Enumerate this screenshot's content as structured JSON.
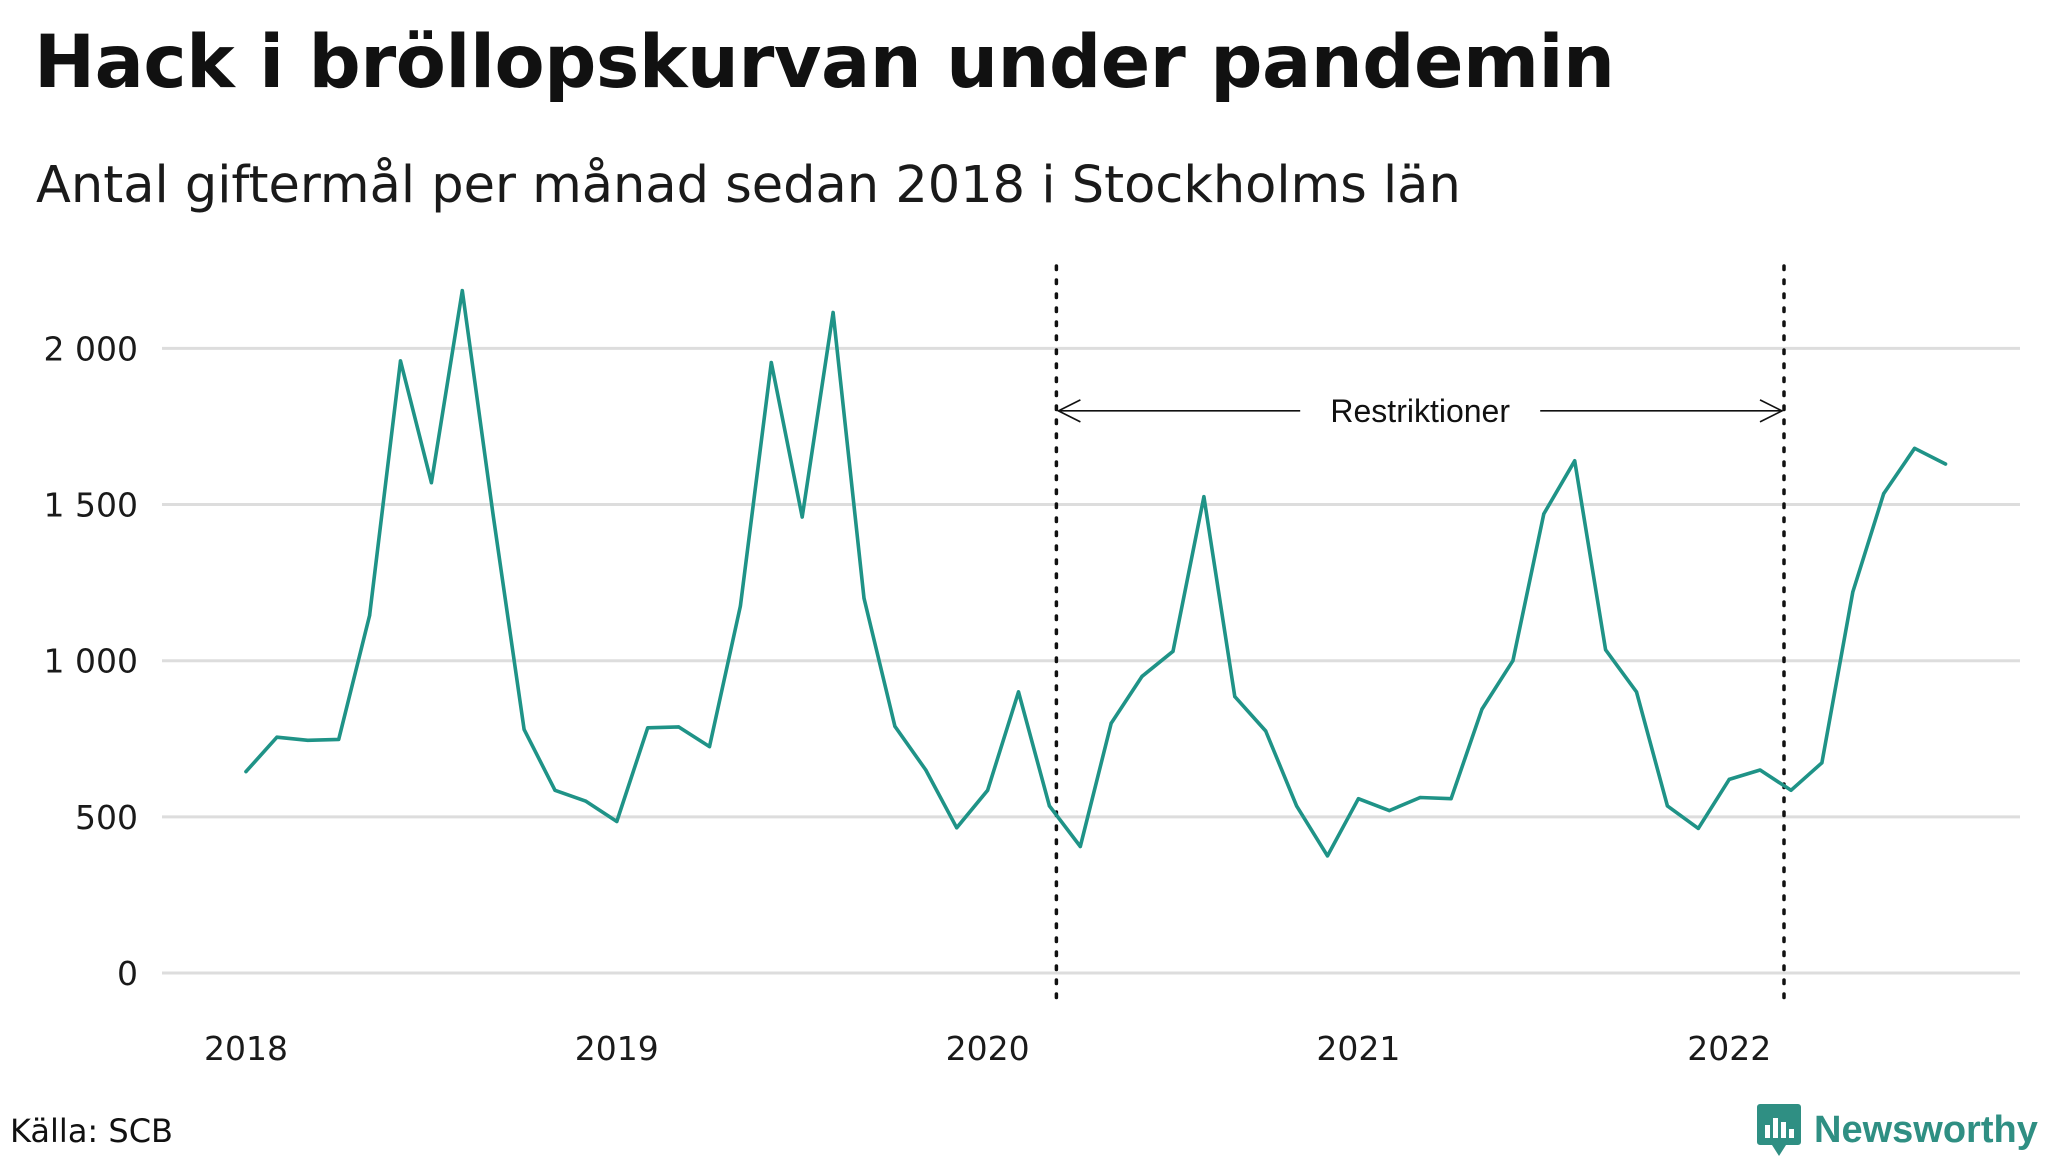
{
  "title": "Hack i bröllopskurvan under pandemin",
  "subtitle": "Antal giftermål per månad sedan 2018 i Stockholms län",
  "source": "Källa: SCB",
  "brand": "Newsworthy",
  "colors": {
    "line": "#1f9387",
    "grid": "#dddddd",
    "brand": "#2f8f83",
    "text": "#111111"
  },
  "chart_data": {
    "type": "line",
    "title": "Hack i bröllopskurvan under pandemin",
    "subtitle": "Antal giftermål per månad sedan 2018 i Stockholms län",
    "xlabel": "",
    "ylabel": "",
    "ylim": [
      0,
      2250
    ],
    "yticks": [
      {
        "value": 0,
        "label": "0"
      },
      {
        "value": 500,
        "label": "500"
      },
      {
        "value": 1000,
        "label": "1 000"
      },
      {
        "value": 1500,
        "label": "1 500"
      },
      {
        "value": 2000,
        "label": "2 000"
      }
    ],
    "xticks": [
      {
        "index": 0,
        "label": "2018"
      },
      {
        "index": 12,
        "label": "2019"
      },
      {
        "index": 24,
        "label": "2020"
      },
      {
        "index": 36,
        "label": "2021"
      },
      {
        "index": 48,
        "label": "2022"
      }
    ],
    "grid": true,
    "series": [
      {
        "name": "Antal giftermål",
        "start": "2018-01",
        "values": [
          645,
          755,
          745,
          748,
          1145,
          1960,
          1570,
          2185,
          1465,
          780,
          585,
          550,
          485,
          785,
          788,
          725,
          1175,
          1955,
          1460,
          2115,
          1200,
          790,
          650,
          465,
          585,
          900,
          535,
          405,
          800,
          950,
          1030,
          1525,
          885,
          775,
          535,
          375,
          558,
          520,
          562,
          558,
          845,
          1000,
          1470,
          1640,
          1035,
          900,
          535,
          463,
          620,
          650,
          585,
          673,
          1220,
          1535,
          1680,
          1630
        ]
      }
    ],
    "annotations": [
      {
        "label": "Restriktioner",
        "start_index": 26,
        "end_index": 50,
        "y": 1800
      }
    ]
  }
}
